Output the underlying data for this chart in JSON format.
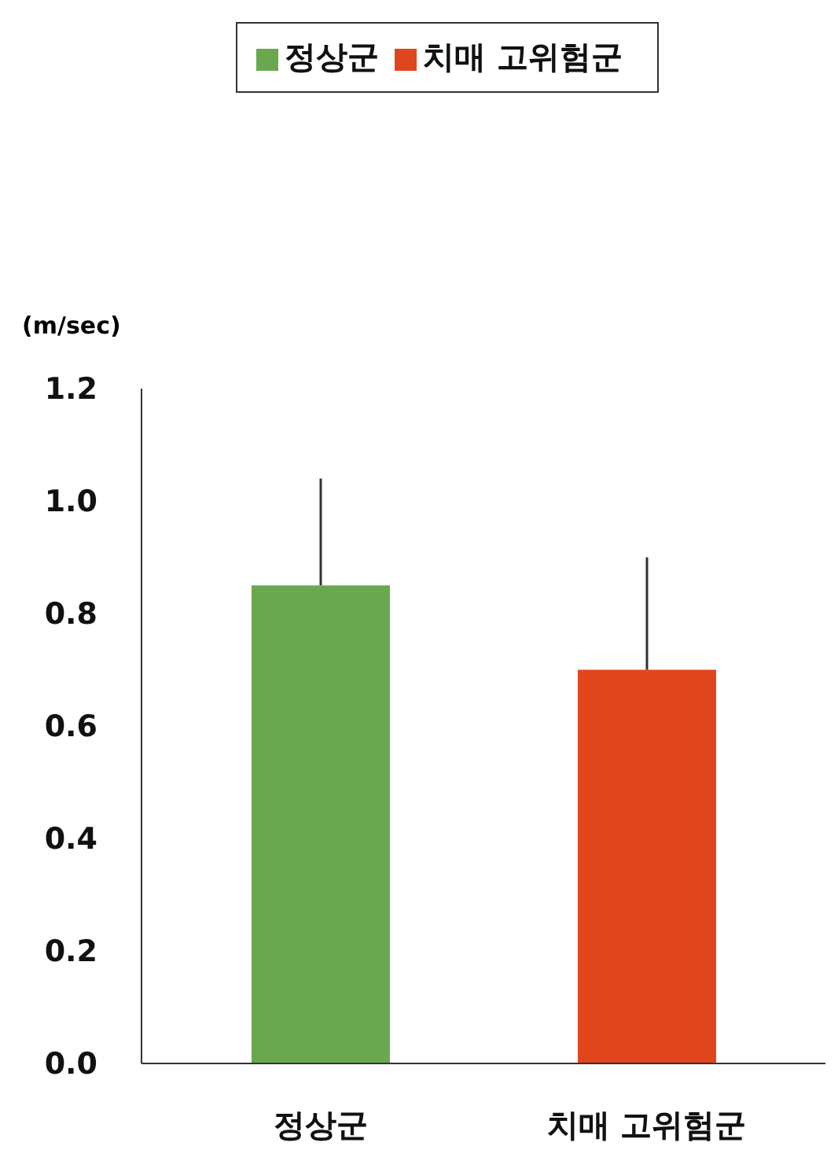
{
  "chart_data": {
    "type": "bar",
    "ylabel": "(m/sec)",
    "categories": [
      "정상군",
      "치매 고위험군"
    ],
    "stacked": true,
    "series": [
      {
        "name": "정상군",
        "color": "#6aa84f",
        "values": [
          0.85,
          null
        ],
        "errors": [
          [
            0.85,
            1.04
          ],
          null
        ]
      },
      {
        "name": "치매 고위험군",
        "color": "#e0461e",
        "values": [
          null,
          0.7
        ],
        "errors": [
          null,
          [
            0.7,
            0.9
          ]
        ]
      }
    ],
    "ylim": [
      0,
      1.2
    ],
    "yticks": [
      {
        "value": 0,
        "label": "0.0"
      },
      {
        "value": 0.2,
        "label": "0.2"
      },
      {
        "value": 0.4,
        "label": "0.4"
      },
      {
        "value": 0.6,
        "label": "0.6"
      },
      {
        "value": 0.8,
        "label": "0.8"
      },
      {
        "value": 1,
        "label": "1.0"
      },
      {
        "value": 1.2,
        "label": "1.2"
      }
    ],
    "legend": "top",
    "grid": false
  }
}
